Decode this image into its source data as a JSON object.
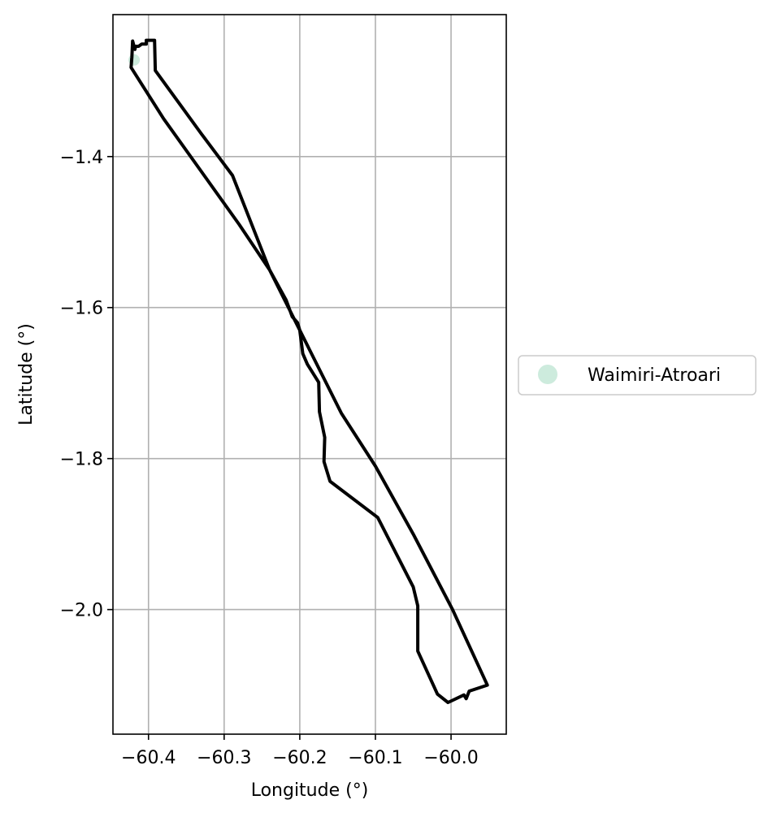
{
  "chart_data": {
    "type": "map",
    "xlabel": "Longitude (°)",
    "ylabel": "Latitude (°)",
    "xlim": [
      -60.447,
      -59.927
    ],
    "ylim": [
      -2.165,
      -1.212
    ],
    "x_ticks": [
      -60.4,
      -60.3,
      -60.2,
      -60.1,
      -60.0
    ],
    "x_tick_labels": [
      "−60.4",
      "−60.3",
      "−60.2",
      "−60.1",
      "−60.0"
    ],
    "y_ticks": [
      -1.4,
      -1.6,
      -1.8,
      -2.0
    ],
    "y_tick_labels": [
      "−1.4",
      "−1.6",
      "−1.8",
      "−2.0"
    ],
    "grid": true,
    "legend_position": "right",
    "legend": [
      {
        "label": "Waimiri-Atroari",
        "color": "#cdebdd"
      }
    ],
    "boundary": [
      [
        -60.423,
        -1.282
      ],
      [
        -60.38,
        -1.35
      ],
      [
        -60.33,
        -1.42
      ],
      [
        -60.28,
        -1.49
      ],
      [
        -60.24,
        -1.55
      ],
      [
        -60.218,
        -1.59
      ],
      [
        -60.21,
        -1.612
      ],
      [
        -60.203,
        -1.62
      ],
      [
        -60.2,
        -1.63
      ],
      [
        -60.196,
        -1.661
      ],
      [
        -60.19,
        -1.675
      ],
      [
        -60.175,
        -1.699
      ],
      [
        -60.174,
        -1.738
      ],
      [
        -60.167,
        -1.772
      ],
      [
        -60.168,
        -1.804
      ],
      [
        -60.16,
        -1.83
      ],
      [
        -60.097,
        -1.878
      ],
      [
        -60.05,
        -1.97
      ],
      [
        -60.044,
        -1.995
      ],
      [
        -60.044,
        -2.055
      ],
      [
        -60.018,
        -2.112
      ],
      [
        -60.004,
        -2.123
      ],
      [
        -59.983,
        -2.113
      ],
      [
        -59.98,
        -2.118
      ],
      [
        -59.976,
        -2.108
      ],
      [
        -59.952,
        -2.1
      ],
      [
        -59.998,
        -2.0
      ],
      [
        -60.05,
        -1.9
      ],
      [
        -60.1,
        -1.81
      ],
      [
        -60.145,
        -1.74
      ],
      [
        -60.19,
        -1.65
      ],
      [
        -60.24,
        -1.55
      ],
      [
        -60.289,
        -1.425
      ],
      [
        -60.33,
        -1.37
      ],
      [
        -60.391,
        -1.286
      ],
      [
        -60.392,
        -1.246
      ],
      [
        -60.403,
        -1.246
      ],
      [
        -60.403,
        -1.251
      ],
      [
        -60.409,
        -1.251
      ],
      [
        -60.413,
        -1.254
      ],
      [
        -60.417,
        -1.254
      ],
      [
        -60.418,
        -1.258
      ],
      [
        -60.421,
        -1.247
      ],
      [
        -60.422,
        -1.268
      ],
      [
        -60.423,
        -1.282
      ]
    ],
    "points": [
      {
        "name": "Waimiri-Atroari",
        "x": -60.419,
        "y": -1.272,
        "color": "#cdebdd"
      }
    ]
  }
}
